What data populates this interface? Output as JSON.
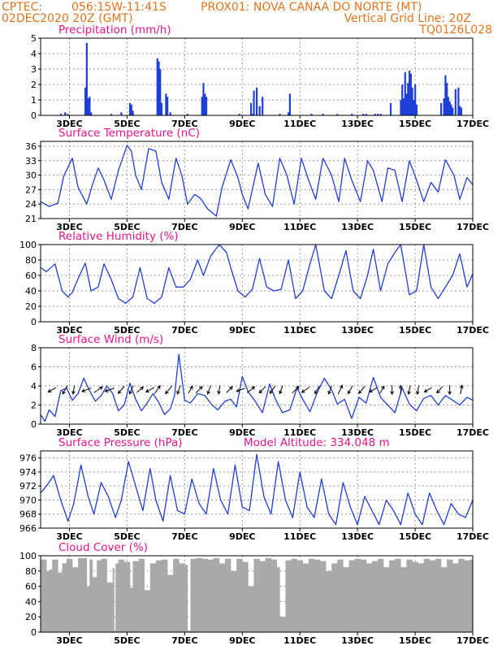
{
  "header": {
    "source": "CPTEC:",
    "coords": "056:15W-11:41S",
    "station": "PROX01: NOVA CANAA DO NORTE (MT)",
    "run": "02DEC2020 20Z (GMT)",
    "grid_note": "Vertical Grid Line: 20Z",
    "model": "TQ0126L028"
  },
  "x_axis": {
    "start_day": 2.0,
    "end_day": 17.0,
    "ticks": [
      {
        "day": 3,
        "label": "3DEC"
      },
      {
        "day": 5,
        "label": "5DEC"
      },
      {
        "day": 7,
        "label": "7DEC"
      },
      {
        "day": 9,
        "label": "9DEC"
      },
      {
        "day": 11,
        "label": "11DEC"
      },
      {
        "day": 13,
        "label": "13DEC"
      },
      {
        "day": 15,
        "label": "15DEC"
      },
      {
        "day": 17,
        "label": "17DEC"
      }
    ]
  },
  "colors": {
    "header": "#e8731c",
    "title": "#e8148c",
    "line": "#1f3fd6",
    "bar": "#1f3fd6",
    "cloud": "#a9a9a9",
    "arrow": "#000000"
  },
  "chart_data": [
    {
      "id": "precipitation",
      "type": "bar",
      "title": "Precipitation (mm/h)",
      "ylim": [
        0,
        5
      ],
      "yticks": [
        0,
        1,
        2,
        3,
        4,
        5
      ],
      "x": [
        2.7,
        2.85,
        2.95,
        3.55,
        3.6,
        3.65,
        3.7,
        3.75,
        4.45,
        4.8,
        5.1,
        5.12,
        5.15,
        5.2,
        6.05,
        6.1,
        6.12,
        6.15,
        6.2,
        6.35,
        6.4,
        6.5,
        7.1,
        7.6,
        7.65,
        7.7,
        7.75,
        8.9,
        9.3,
        9.35,
        9.4,
        9.5,
        9.6,
        9.7,
        10.3,
        10.6,
        10.65,
        11.4,
        11.8,
        12.3,
        12.8,
        13.2,
        13.3,
        13.6,
        13.7,
        13.8,
        14.15,
        14.5,
        14.55,
        14.6,
        14.65,
        14.7,
        14.75,
        14.8,
        14.85,
        14.9,
        14.95,
        15.0,
        15.05,
        15.9,
        16.0,
        16.05,
        16.1,
        16.15,
        16.2,
        16.25,
        16.3,
        16.4,
        16.5,
        16.55,
        16.6
      ],
      "values": [
        0.1,
        0.2,
        0.1,
        1.8,
        4.7,
        1.1,
        1.2,
        0.2,
        0.1,
        0.2,
        0.8,
        0.5,
        0.7,
        0.3,
        3.7,
        3.5,
        1.9,
        3.0,
        0.8,
        1.4,
        1.2,
        0.2,
        0.1,
        1.2,
        2.1,
        1.4,
        1.2,
        0.1,
        0.8,
        0.1,
        1.6,
        1.8,
        0.6,
        1.2,
        0.1,
        0.2,
        1.4,
        0.1,
        0.1,
        0.1,
        0.1,
        0.1,
        0.1,
        0.1,
        0.1,
        0.1,
        0.8,
        1.0,
        2.0,
        1.1,
        2.8,
        1.4,
        2.1,
        2.9,
        2.7,
        1.8,
        1.0,
        2.0,
        0.7,
        0.8,
        1.1,
        2.6,
        2.1,
        1.2,
        0.9,
        0.7,
        0.5,
        1.7,
        1.8,
        0.6,
        0.5
      ]
    },
    {
      "id": "temperature",
      "type": "line",
      "title": "Surface Temperature (nC)",
      "ylim": [
        21,
        37
      ],
      "yticks": [
        21,
        24,
        27,
        30,
        33,
        36
      ],
      "x": [
        2.0,
        2.3,
        2.6,
        2.8,
        3.1,
        3.3,
        3.6,
        3.8,
        4.0,
        4.2,
        4.45,
        4.7,
        5.0,
        5.15,
        5.3,
        5.5,
        5.75,
        6.0,
        6.2,
        6.45,
        6.7,
        6.9,
        7.1,
        7.35,
        7.55,
        7.8,
        8.1,
        8.3,
        8.6,
        8.85,
        9.0,
        9.2,
        9.55,
        9.8,
        10.05,
        10.3,
        10.55,
        10.8,
        11.05,
        11.3,
        11.55,
        11.8,
        12.1,
        12.35,
        12.55,
        12.8,
        13.1,
        13.35,
        13.55,
        13.85,
        14.05,
        14.3,
        14.55,
        14.8,
        15.05,
        15.3,
        15.55,
        15.8,
        16.05,
        16.35,
        16.55,
        16.8,
        17.0
      ],
      "y": [
        24.5,
        23.5,
        24.2,
        29.8,
        33.5,
        27.5,
        24.0,
        28.0,
        31.5,
        29.0,
        25.0,
        31.0,
        36.2,
        35.0,
        30.0,
        27.0,
        35.5,
        35.0,
        28.5,
        25.0,
        33.5,
        30.0,
        24.0,
        26.0,
        25.2,
        23.0,
        21.5,
        27.5,
        33.2,
        29.5,
        26.0,
        23.0,
        32.5,
        26.0,
        23.5,
        33.5,
        30.0,
        24.0,
        33.5,
        29.0,
        25.0,
        33.5,
        30.0,
        24.5,
        33.5,
        29.0,
        24.5,
        33.0,
        31.0,
        24.5,
        31.5,
        31.0,
        24.5,
        33.0,
        29.0,
        24.5,
        28.5,
        26.5,
        33.2,
        30.0,
        25.0,
        29.5,
        28.0
      ]
    },
    {
      "id": "humidity",
      "type": "line",
      "title": "Relative Humidity (%)",
      "ylim": [
        0,
        100
      ],
      "yticks": [
        0,
        20,
        40,
        60,
        80,
        100
      ],
      "x": [
        2.0,
        2.2,
        2.5,
        2.75,
        2.95,
        3.1,
        3.35,
        3.55,
        3.75,
        4.0,
        4.2,
        4.45,
        4.7,
        4.95,
        5.2,
        5.45,
        5.7,
        5.95,
        6.2,
        6.45,
        6.7,
        6.95,
        7.2,
        7.45,
        7.65,
        7.9,
        8.2,
        8.45,
        8.6,
        8.85,
        9.1,
        9.35,
        9.6,
        9.85,
        10.1,
        10.35,
        10.6,
        10.85,
        11.1,
        11.35,
        11.55,
        11.85,
        12.1,
        12.35,
        12.6,
        12.85,
        13.1,
        13.35,
        13.55,
        13.8,
        14.05,
        14.3,
        14.5,
        14.8,
        15.05,
        15.3,
        15.55,
        15.8,
        16.05,
        16.3,
        16.55,
        16.8,
        17.0
      ],
      "y": [
        70,
        65,
        75,
        40,
        32,
        38,
        60,
        76,
        40,
        45,
        75,
        55,
        30,
        24,
        32,
        70,
        30,
        24,
        32,
        70,
        45,
        45,
        55,
        80,
        60,
        85,
        100,
        90,
        70,
        40,
        32,
        42,
        82,
        45,
        40,
        42,
        80,
        30,
        40,
        75,
        100,
        40,
        30,
        60,
        92,
        40,
        30,
        60,
        94,
        40,
        75,
        90,
        100,
        35,
        40,
        100,
        45,
        30,
        45,
        60,
        88,
        45,
        62
      ]
    },
    {
      "id": "wind",
      "type": "line",
      "title": "Surface Wind (m/s)",
      "ylim": [
        0,
        8
      ],
      "yticks": [
        0,
        2,
        4,
        6,
        8
      ],
      "x": [
        2.0,
        2.15,
        2.3,
        2.5,
        2.7,
        2.9,
        3.1,
        3.3,
        3.5,
        3.7,
        3.9,
        4.1,
        4.3,
        4.5,
        4.7,
        4.9,
        5.1,
        5.3,
        5.5,
        5.7,
        5.9,
        6.1,
        6.3,
        6.5,
        6.65,
        6.8,
        7.0,
        7.2,
        7.45,
        7.7,
        7.95,
        8.15,
        8.4,
        8.6,
        8.8,
        9.0,
        9.2,
        9.45,
        9.7,
        9.95,
        10.15,
        10.4,
        10.65,
        10.9,
        11.1,
        11.35,
        11.6,
        11.85,
        12.1,
        12.3,
        12.55,
        12.8,
        13.05,
        13.3,
        13.55,
        13.8,
        14.05,
        14.3,
        14.55,
        14.8,
        15.05,
        15.3,
        15.55,
        15.8,
        16.05,
        16.3,
        16.55,
        16.8,
        17.0
      ],
      "y": [
        1.0,
        0.3,
        1.5,
        0.8,
        3.5,
        3.8,
        2.5,
        3.2,
        4.8,
        3.5,
        2.4,
        3.0,
        4.0,
        3.2,
        1.4,
        2.0,
        4.3,
        2.6,
        1.4,
        2.2,
        3.2,
        2.3,
        1.0,
        1.6,
        3.0,
        7.3,
        2.5,
        2.2,
        3.2,
        3.0,
        2.0,
        1.5,
        2.4,
        2.6,
        1.8,
        5.0,
        3.4,
        2.4,
        1.2,
        4.2,
        2.6,
        1.2,
        1.5,
        3.8,
        2.6,
        1.3,
        3.3,
        4.8,
        3.6,
        2.1,
        2.6,
        0.6,
        2.8,
        2.2,
        4.9,
        2.8,
        2.0,
        1.2,
        3.8,
        2.1,
        1.4,
        2.7,
        3.0,
        2.0,
        3.0,
        2.5,
        2.0,
        2.8,
        2.5
      ],
      "vectors": {
        "x": [
          2.4,
          2.85,
          3.15,
          3.6,
          4.0,
          4.4,
          4.8,
          5.15,
          5.45,
          5.8,
          6.05,
          6.45,
          6.8,
          7.2,
          7.5,
          7.85,
          8.2,
          8.55,
          8.95,
          9.3,
          9.7,
          10.05,
          10.35,
          10.85,
          11.2,
          11.6,
          12.05,
          12.4,
          12.75,
          13.15,
          13.55,
          13.85,
          14.2,
          14.5,
          14.8,
          15.1,
          15.45,
          15.85,
          16.2,
          16.6
        ],
        "y": [
          3.6,
          3.6,
          3.6,
          3.6,
          3.6,
          3.6,
          3.6,
          3.6,
          3.6,
          3.6,
          3.6,
          3.6,
          3.6,
          3.6,
          3.6,
          3.6,
          3.6,
          3.6,
          3.6,
          3.6,
          3.6,
          3.6,
          3.6,
          3.6,
          3.6,
          3.6,
          3.6,
          3.6,
          3.6,
          3.6,
          3.6,
          3.6,
          3.6,
          3.6,
          3.6,
          3.6,
          3.6,
          3.6,
          3.6,
          3.6
        ],
        "dir_deg": [
          210,
          240,
          260,
          200,
          35,
          200,
          230,
          245,
          40,
          210,
          55,
          230,
          250,
          60,
          45,
          250,
          260,
          45,
          200,
          40,
          225,
          235,
          250,
          45,
          215,
          240,
          250,
          65,
          240,
          230,
          210,
          60,
          270,
          90,
          260,
          260,
          210,
          230,
          270,
          80
        ],
        "speed": [
          2.5,
          3.0,
          2.2,
          3.2,
          3.2,
          3.0,
          2.8,
          2.5,
          2.2,
          2.8,
          3.0,
          3.2,
          2.5,
          2.0,
          2.5,
          2.5,
          2.2,
          2.2,
          2.5,
          2.8,
          2.5,
          2.5,
          2.2,
          2.8,
          2.8,
          2.5,
          2.5,
          3.0,
          2.5,
          2.8,
          2.5,
          2.0,
          2.5,
          2.2,
          2.5,
          2.5,
          2.2,
          2.2,
          2.5,
          2.5
        ]
      }
    },
    {
      "id": "pressure",
      "type": "line",
      "title": "Surface Pressure (hPa)",
      "annotation": "Model Altitude: 334.048 m",
      "ylim": [
        966,
        977
      ],
      "yticks": [
        966,
        968,
        970,
        972,
        974,
        976
      ],
      "x": [
        2.0,
        2.2,
        2.45,
        2.7,
        2.95,
        3.15,
        3.4,
        3.65,
        3.85,
        4.1,
        4.35,
        4.6,
        4.8,
        5.05,
        5.3,
        5.55,
        5.8,
        6.0,
        6.25,
        6.5,
        6.75,
        7.0,
        7.25,
        7.5,
        7.75,
        8.0,
        8.25,
        8.5,
        8.75,
        9.0,
        9.25,
        9.5,
        9.75,
        10.0,
        10.25,
        10.5,
        10.75,
        11.0,
        11.25,
        11.5,
        11.75,
        12.0,
        12.25,
        12.5,
        12.75,
        13.0,
        13.25,
        13.5,
        13.75,
        14.0,
        14.25,
        14.5,
        14.75,
        15.0,
        15.25,
        15.5,
        15.75,
        16.0,
        16.25,
        16.5,
        16.75,
        17.0
      ],
      "y": [
        971.0,
        972.0,
        973.5,
        970.0,
        967.0,
        969.5,
        975.0,
        970.5,
        968.0,
        972.5,
        970.5,
        967.5,
        970.0,
        975.5,
        972.0,
        968.5,
        974.5,
        970.0,
        967.0,
        973.5,
        968.5,
        968.0,
        973.0,
        969.5,
        968.0,
        974.5,
        970.0,
        968.0,
        975.0,
        969.0,
        968.5,
        976.5,
        970.5,
        968.0,
        975.5,
        970.0,
        967.5,
        974.0,
        969.0,
        967.5,
        973.0,
        968.0,
        966.5,
        972.5,
        969.0,
        966.5,
        970.5,
        968.5,
        966.5,
        970.0,
        968.5,
        966.5,
        971.0,
        968.0,
        966.5,
        971.0,
        968.5,
        966.5,
        969.5,
        968.0,
        967.5,
        970.0
      ]
    },
    {
      "id": "cloud",
      "type": "area",
      "title": "Cloud Cover (%)",
      "ylim": [
        0,
        100
      ],
      "yticks": [
        0,
        20,
        40,
        60,
        80,
        100
      ],
      "x": [
        2.0,
        2.2,
        2.3,
        2.4,
        2.6,
        2.75,
        2.9,
        3.1,
        3.3,
        3.5,
        3.6,
        3.7,
        3.8,
        3.95,
        4.1,
        4.3,
        4.5,
        4.55,
        4.6,
        4.7,
        4.9,
        5.1,
        5.2,
        5.4,
        5.6,
        5.8,
        6.0,
        6.2,
        6.4,
        6.6,
        6.8,
        7.0,
        7.1,
        7.2,
        7.4,
        7.6,
        7.8,
        8.0,
        8.2,
        8.4,
        8.6,
        8.8,
        9.0,
        9.2,
        9.4,
        9.6,
        9.8,
        10.0,
        10.2,
        10.3,
        10.5,
        10.7,
        10.9,
        11.1,
        11.3,
        11.5,
        11.7,
        11.9,
        12.1,
        12.3,
        12.5,
        12.7,
        12.9,
        13.1,
        13.3,
        13.5,
        13.7,
        13.9,
        14.1,
        14.3,
        14.5,
        14.7,
        14.9,
        15.1,
        15.3,
        15.5,
        15.7,
        15.9,
        16.1,
        16.3,
        16.5,
        16.7,
        16.9,
        17.0
      ],
      "y": [
        95,
        80,
        82,
        95,
        78,
        90,
        96,
        85,
        97,
        97,
        60,
        95,
        72,
        94,
        96,
        65,
        84,
        2,
        90,
        95,
        92,
        58,
        93,
        96,
        55,
        90,
        94,
        95,
        75,
        96,
        90,
        88,
        2,
        96,
        97,
        96,
        95,
        97,
        90,
        96,
        80,
        96,
        92,
        60,
        96,
        93,
        97,
        95,
        85,
        20,
        94,
        96,
        94,
        90,
        96,
        95,
        93,
        80,
        90,
        95,
        85,
        94,
        96,
        95,
        90,
        93,
        96,
        85,
        94,
        96,
        85,
        95,
        92,
        90,
        96,
        94,
        96,
        85,
        95,
        90,
        96,
        94,
        95,
        95
      ]
    }
  ]
}
